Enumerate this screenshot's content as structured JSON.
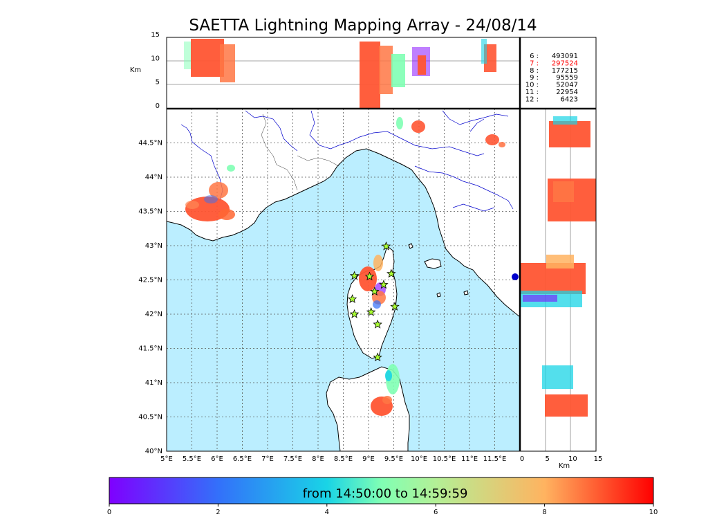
{
  "title": "SAETTA Lightning Mapping Array - 24/08/14",
  "top_panel": {
    "ylabel": "Km",
    "yticks": [
      "15",
      "10",
      "5",
      "0"
    ],
    "ylim": [
      0,
      15
    ]
  },
  "side_panel": {
    "xlabel": "Km",
    "xticks": [
      "0",
      "5",
      "10",
      "15"
    ],
    "xlim": [
      0,
      15
    ]
  },
  "map": {
    "lon_ticks": [
      "5°E",
      "5.5°E",
      "6°E",
      "6.5°E",
      "7°E",
      "7.5°E",
      "8°E",
      "8.5°E",
      "9°E",
      "9.5°E",
      "10°E",
      "10.5°E",
      "11°E",
      "11.5°E"
    ],
    "lat_ticks": [
      "40°N",
      "40.5°N",
      "41°N",
      "41.5°N",
      "42°N",
      "42.5°N",
      "43°N",
      "43.5°N",
      "44°N",
      "44.5°N"
    ],
    "lon_range": [
      5,
      12
    ],
    "lat_range": [
      40,
      45
    ],
    "sea_color": "#bbeeff",
    "land_color": "#ffffff",
    "river_color": "#0000cc",
    "station_marker": "green-star-icon",
    "stations_count": 12
  },
  "stats": [
    {
      "label": "6  :",
      "value": "493091",
      "color": "#000000"
    },
    {
      "label": "7  :",
      "value": "297524",
      "color": "#ff0000"
    },
    {
      "label": "8  :",
      "value": "177215",
      "color": "#000000"
    },
    {
      "label": "9  :",
      "value": "95559",
      "color": "#000000"
    },
    {
      "label": "10 :",
      "value": "52047",
      "color": "#000000"
    },
    {
      "label": "11 :",
      "value": "22954",
      "color": "#000000"
    },
    {
      "label": "12 :",
      "value": "6423",
      "color": "#000000"
    }
  ],
  "colorbar": {
    "label": "from 14:50:00 to 14:59:59",
    "ticks": [
      "0",
      "2",
      "4",
      "6",
      "8",
      "10"
    ],
    "range": [
      0,
      10
    ],
    "colormap": "rainbow"
  }
}
